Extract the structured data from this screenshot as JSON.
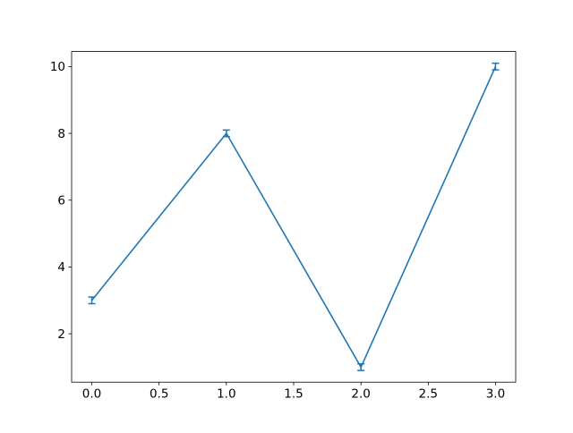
{
  "figure": {
    "background": "#ffffff",
    "title": ""
  },
  "chart_data": {
    "type": "line",
    "x": [
      0,
      1,
      2,
      3
    ],
    "y": [
      3,
      8,
      1,
      10
    ],
    "yerr": [
      0.1,
      0.1,
      0.1,
      0.1
    ],
    "series_name": "",
    "title": "",
    "xlabel": "",
    "ylabel": "",
    "xlim": [
      -0.15,
      3.15
    ],
    "ylim": [
      0.55,
      10.45
    ],
    "x_tick_values": [
      0.0,
      0.5,
      1.0,
      1.5,
      2.0,
      2.5,
      3.0
    ],
    "x_tick_labels": [
      "0.0",
      "0.5",
      "1.0",
      "1.5",
      "2.0",
      "2.5",
      "3.0"
    ],
    "y_tick_values": [
      2,
      4,
      6,
      8,
      10
    ],
    "y_tick_labels": [
      "2",
      "4",
      "6",
      "8",
      "10"
    ],
    "grid": false,
    "legend": null,
    "line_color": "#1f77b4",
    "axes_color": "#000000",
    "background_color": "#ffffff"
  }
}
